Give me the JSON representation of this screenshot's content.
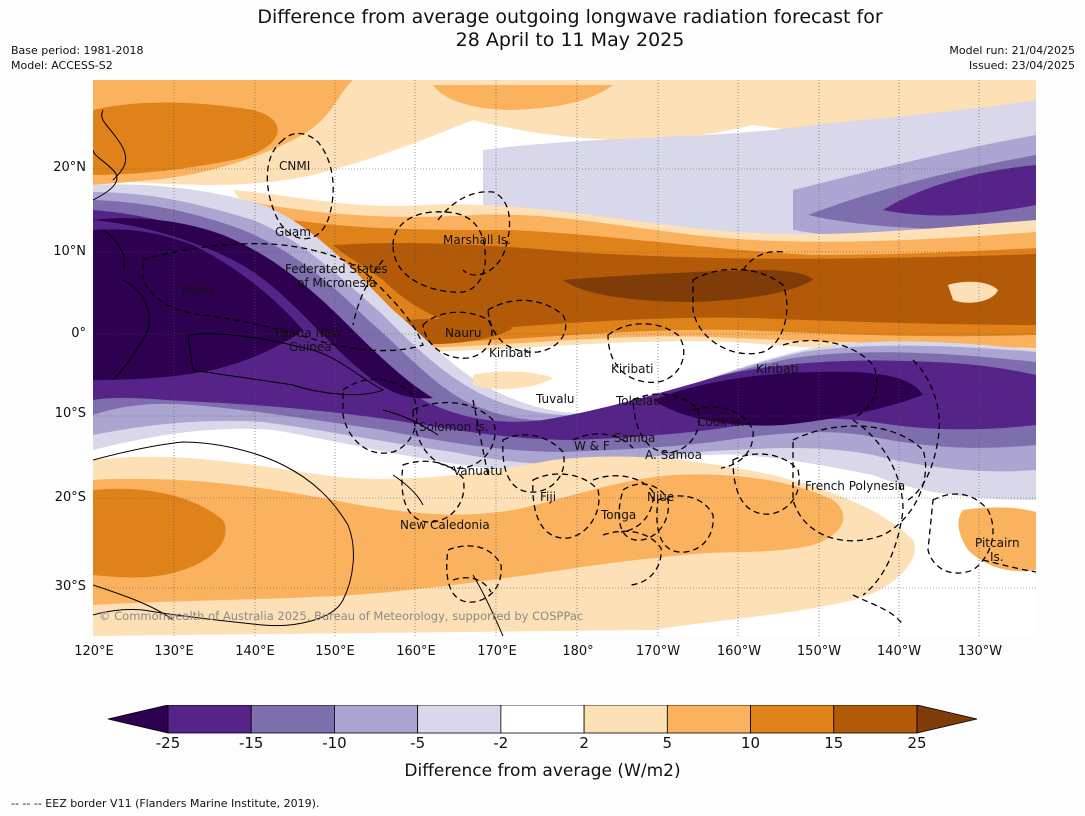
{
  "title_line1": "Difference from average outgoing longwave radiation forecast for",
  "title_line2": "28 April to 11 May 2025",
  "base_period": "Base period: 1981-2018",
  "model": "Model: ACCESS-S2",
  "model_run": "Model run: 21/04/2025",
  "issued": "Issued: 23/04/2025",
  "lat_ticks": [
    "20°N",
    "10°N",
    "0°",
    "10°S",
    "20°S",
    "30°S"
  ],
  "lon_ticks": [
    "120°E",
    "130°E",
    "140°E",
    "150°E",
    "160°E",
    "170°E",
    "180°",
    "170°W",
    "160°W",
    "150°W",
    "140°W",
    "130°W"
  ],
  "place_labels": [
    "CNMI",
    "Guam",
    "Marshall Is.",
    "Federated States",
    "of Micronesia",
    "Palau",
    "Papua New",
    "Guinea",
    "Nauru",
    "Kiribati",
    "Kiribati",
    "Kiribati",
    "Tuvalu",
    "Tokelau",
    "Cook Is.",
    "Solomon Is.",
    "W & F",
    "Samoa",
    "A. Samoa",
    "Vanuatu",
    "Fiji",
    "Niue",
    "French Polynesia",
    "Tonga",
    "New Caledonia",
    "Pitcairn",
    "Is."
  ],
  "copyright": "© Commonwealth of Australia 2025, Bureau of Meteorology, supported by COSPPac",
  "colorbar": {
    "levels": [
      "-25",
      "-15",
      "-10",
      "-5",
      "-2",
      "2",
      "5",
      "10",
      "15",
      "25"
    ],
    "colors": [
      "#2d0050",
      "#562388",
      "#7e6ead",
      "#aca5d1",
      "#d9d8eb",
      "#ffffff",
      "#fde0b5",
      "#fbb25f",
      "#e0821a",
      "#b35a09",
      "#7f3b08"
    ],
    "title": "Difference from average (W/m2)"
  },
  "footnote": "--  --  -- EEZ border V11 (Flanders Marine Institute, 2019)."
}
